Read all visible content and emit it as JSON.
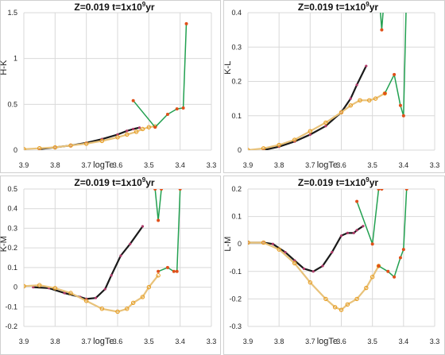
{
  "chart_data": [
    {
      "type": "line",
      "title": "Z=0.019   t=1x10",
      "title_sup": "9",
      "title_suffix": "yr",
      "xlabel": "logTe",
      "ylabel": "H-K",
      "xlim": [
        3.9,
        3.3
      ],
      "ylim": [
        0,
        1.5
      ],
      "xticks": [
        "3.9",
        "3.8",
        "3.7",
        "3.6",
        "3.5",
        "3.4",
        "3.3"
      ],
      "yticks": [
        "0",
        "0.5",
        "1",
        "1.5"
      ],
      "grid": true,
      "colors": {
        "black_series": "#1a1a1a",
        "black_marker": "#b03a6a",
        "yellow_series": "#e8c27a",
        "yellow_marker": "#e89a1a",
        "green_series": "#22a050",
        "green_marker": "#e0501a"
      },
      "series": [
        {
          "color_key": "black",
          "x": [
            3.85,
            3.8,
            3.75,
            3.7,
            3.65,
            3.6,
            3.57,
            3.55,
            3.53
          ],
          "y": [
            0.01,
            0.03,
            0.05,
            0.08,
            0.12,
            0.17,
            0.21,
            0.23,
            0.245
          ]
        },
        {
          "color_key": "yellow",
          "x": [
            3.9,
            3.85,
            3.8,
            3.75,
            3.7,
            3.65,
            3.6,
            3.57,
            3.54,
            3.52,
            3.5,
            3.48
          ],
          "y": [
            0.01,
            0.02,
            0.03,
            0.05,
            0.07,
            0.1,
            0.14,
            0.17,
            0.2,
            0.23,
            0.25,
            0.26
          ]
        },
        {
          "color_key": "green",
          "x": [
            3.55,
            3.48,
            3.44,
            3.41,
            3.39,
            3.38
          ],
          "y": [
            0.54,
            0.25,
            0.39,
            0.45,
            0.46,
            1.38
          ]
        }
      ]
    },
    {
      "type": "line",
      "title": "Z=0.019   t=1x10",
      "title_sup": "9",
      "title_suffix": "yr",
      "xlabel": "logTe",
      "ylabel": "K-L",
      "xlim": [
        3.9,
        3.3
      ],
      "ylim": [
        0,
        0.4
      ],
      "xticks": [
        "3.9",
        "3.8",
        "3.7",
        "3.6",
        "3.5",
        "3.4",
        "3.3"
      ],
      "yticks": [
        "0",
        "0.1",
        "0.2",
        "0.3",
        "0.4"
      ],
      "grid": true,
      "series": [
        {
          "color_key": "black",
          "x": [
            3.85,
            3.8,
            3.75,
            3.7,
            3.65,
            3.6,
            3.57,
            3.55,
            3.52
          ],
          "y": [
            0.0,
            0.01,
            0.025,
            0.045,
            0.07,
            0.11,
            0.15,
            0.19,
            0.245
          ]
        },
        {
          "color_key": "yellow",
          "x": [
            3.9,
            3.85,
            3.8,
            3.75,
            3.7,
            3.65,
            3.6,
            3.57,
            3.54,
            3.51,
            3.49,
            3.46
          ],
          "y": [
            0.0,
            0.005,
            0.015,
            0.03,
            0.055,
            0.08,
            0.11,
            0.13,
            0.145,
            0.145,
            0.15,
            0.165
          ]
        },
        {
          "color_key": "green",
          "x": [
            3.46,
            3.43,
            3.41,
            3.4,
            3.39
          ],
          "y": [
            0.165,
            0.22,
            0.13,
            0.1,
            0.47
          ]
        },
        {
          "color_key": "green",
          "x": [
            3.48,
            3.47,
            3.46
          ],
          "y": [
            0.47,
            0.35,
            0.47
          ]
        }
      ]
    },
    {
      "type": "line",
      "title": "Z=0.019   t=1x10",
      "title_sup": "9",
      "title_suffix": "yr",
      "xlabel": "logTe",
      "ylabel": "K-M",
      "xlim": [
        3.9,
        3.3
      ],
      "ylim": [
        -0.2,
        0.5
      ],
      "xticks": [
        "3.9",
        "3.8",
        "3.7",
        "3.6",
        "3.5",
        "3.4",
        "3.3"
      ],
      "yticks": [
        "-0.2",
        "-0.1",
        "0",
        "0.1",
        "0.2",
        "0.3",
        "0.4",
        "0.5"
      ],
      "grid": true,
      "series": [
        {
          "color_key": "black",
          "x": [
            3.87,
            3.82,
            3.77,
            3.72,
            3.7,
            3.67,
            3.64,
            3.62,
            3.59,
            3.56,
            3.52
          ],
          "y": [
            0.0,
            -0.005,
            -0.03,
            -0.05,
            -0.06,
            -0.055,
            -0.01,
            0.06,
            0.16,
            0.22,
            0.31
          ]
        },
        {
          "color_key": "yellow",
          "x": [
            3.9,
            3.85,
            3.8,
            3.75,
            3.7,
            3.65,
            3.6,
            3.57,
            3.55,
            3.52,
            3.5,
            3.47
          ],
          "y": [
            0.005,
            0.01,
            -0.005,
            -0.03,
            -0.07,
            -0.11,
            -0.125,
            -0.11,
            -0.08,
            -0.05,
            0.0,
            0.06
          ]
        },
        {
          "color_key": "green",
          "x": [
            3.47,
            3.44,
            3.42,
            3.41,
            3.4
          ],
          "y": [
            0.08,
            0.1,
            0.08,
            0.08,
            0.5
          ]
        },
        {
          "color_key": "green",
          "x": [
            3.48,
            3.47,
            3.46
          ],
          "y": [
            0.5,
            0.34,
            0.5
          ]
        }
      ]
    },
    {
      "type": "line",
      "title": "Z=0.019   t=1x10",
      "title_sup": "9",
      "title_suffix": "yr",
      "xlabel": "logTe",
      "ylabel": "L-M",
      "xlim": [
        3.9,
        3.3
      ],
      "ylim": [
        -0.3,
        0.2
      ],
      "xticks": [
        "3.9",
        "3.8",
        "3.7",
        "3.6",
        "3.5",
        "3.4",
        "3.3"
      ],
      "yticks": [
        "-0.3",
        "-0.2",
        "-0.1",
        "0",
        "0.1",
        "0.2"
      ],
      "grid": true,
      "series": [
        {
          "color_key": "black",
          "x": [
            3.9,
            3.85,
            3.82,
            3.78,
            3.75,
            3.72,
            3.69,
            3.66,
            3.63,
            3.6,
            3.58,
            3.56,
            3.55,
            3.53
          ],
          "y": [
            0.005,
            0.005,
            0.0,
            -0.03,
            -0.06,
            -0.09,
            -0.1,
            -0.08,
            -0.03,
            0.03,
            0.04,
            0.04,
            0.05,
            0.065
          ]
        },
        {
          "color_key": "yellow",
          "x": [
            3.9,
            3.85,
            3.8,
            3.75,
            3.7,
            3.65,
            3.62,
            3.6,
            3.58,
            3.55,
            3.52,
            3.5,
            3.48
          ],
          "y": [
            0.005,
            0.005,
            -0.02,
            -0.07,
            -0.14,
            -0.2,
            -0.23,
            -0.24,
            -0.22,
            -0.2,
            -0.16,
            -0.12,
            -0.08
          ]
        },
        {
          "color_key": "green",
          "x": [
            3.48,
            3.45,
            3.43,
            3.41,
            3.4,
            3.39
          ],
          "y": [
            -0.08,
            -0.1,
            -0.12,
            -0.05,
            -0.02,
            0.2
          ]
        },
        {
          "color_key": "green",
          "x": [
            3.55,
            3.5,
            3.48,
            3.47
          ],
          "y": [
            0.155,
            0.0,
            0.2,
            0.2
          ]
        }
      ]
    }
  ]
}
